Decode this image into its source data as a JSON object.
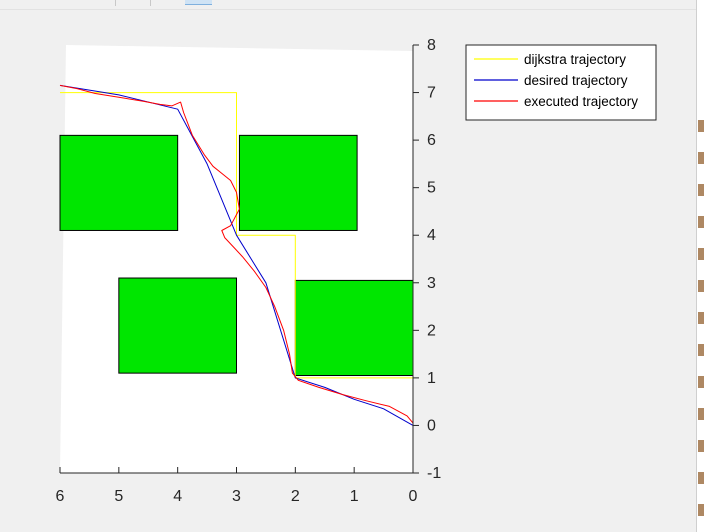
{
  "chart_data": {
    "type": "line",
    "title": "",
    "xlabel": "",
    "ylabel": "",
    "xlim": [
      6,
      0
    ],
    "ylim": [
      -1,
      8
    ],
    "x_reversed": true,
    "y_axis_location": "right",
    "grid": false,
    "legend_placement": "top-right-outside",
    "xticks": [
      {
        "value": 6,
        "label": "6"
      },
      {
        "value": 5,
        "label": "5"
      },
      {
        "value": 4,
        "label": "4"
      },
      {
        "value": 3,
        "label": "3"
      },
      {
        "value": 2,
        "label": "2"
      },
      {
        "value": 1,
        "label": "1"
      },
      {
        "value": 0,
        "label": "0"
      }
    ],
    "yticks": [
      {
        "value": -1,
        "label": "-1"
      },
      {
        "value": 0,
        "label": "0"
      },
      {
        "value": 1,
        "label": "1"
      },
      {
        "value": 2,
        "label": "2"
      },
      {
        "value": 3,
        "label": "3"
      },
      {
        "value": 4,
        "label": "4"
      },
      {
        "value": 5,
        "label": "5"
      },
      {
        "value": 6,
        "label": "6"
      },
      {
        "value": 7,
        "label": "7"
      },
      {
        "value": 8,
        "label": "8"
      }
    ],
    "obstacles": [
      {
        "x": [
          4,
          6
        ],
        "y": [
          4.1,
          6.1
        ],
        "color": "#00e600"
      },
      {
        "x": [
          0.95,
          2.95
        ],
        "y": [
          4.1,
          6.1
        ],
        "color": "#00e600"
      },
      {
        "x": [
          3,
          5
        ],
        "y": [
          1.1,
          3.1
        ],
        "color": "#00e600"
      },
      {
        "x": [
          0,
          2
        ],
        "y": [
          1.05,
          3.05
        ],
        "color": "#00e600"
      }
    ],
    "series": [
      {
        "name": "dijkstra trajectory",
        "color": "#ffff00",
        "x": [
          6,
          3,
          3,
          2,
          2,
          0,
          0
        ],
        "y": [
          7,
          7,
          4,
          4,
          1,
          1,
          0
        ]
      },
      {
        "name": "desired trajectory",
        "color": "#0000cc",
        "x": [
          6,
          5,
          4,
          3.5,
          3,
          2.5,
          2,
          1.5,
          1,
          0.5,
          0
        ],
        "y": [
          7.15,
          6.95,
          6.65,
          5.5,
          4.0,
          3.0,
          1.0,
          0.8,
          0.55,
          0.35,
          0
        ]
      },
      {
        "name": "executed trajectory",
        "color": "#ff0000",
        "x": [
          6,
          5.7,
          5.4,
          5,
          4.6,
          4.3,
          4.1,
          3.95,
          3.9,
          3.75,
          3.55,
          3.4,
          3.25,
          3.1,
          3.0,
          2.95,
          3.1,
          3.25,
          3.2,
          3.05,
          2.9,
          2.7,
          2.5,
          2.35,
          2.2,
          2.1,
          2.05,
          1.95,
          1.6,
          1.2,
          0.8,
          0.4,
          0.1,
          0
        ],
        "y": [
          7.15,
          7.08,
          6.98,
          6.9,
          6.82,
          6.75,
          6.72,
          6.8,
          6.58,
          6.1,
          5.7,
          5.45,
          5.3,
          5.15,
          4.9,
          4.55,
          4.2,
          4.1,
          3.95,
          3.75,
          3.55,
          3.25,
          2.9,
          2.5,
          2.0,
          1.5,
          1.1,
          0.95,
          0.8,
          0.65,
          0.52,
          0.4,
          0.2,
          0.05
        ]
      }
    ]
  }
}
